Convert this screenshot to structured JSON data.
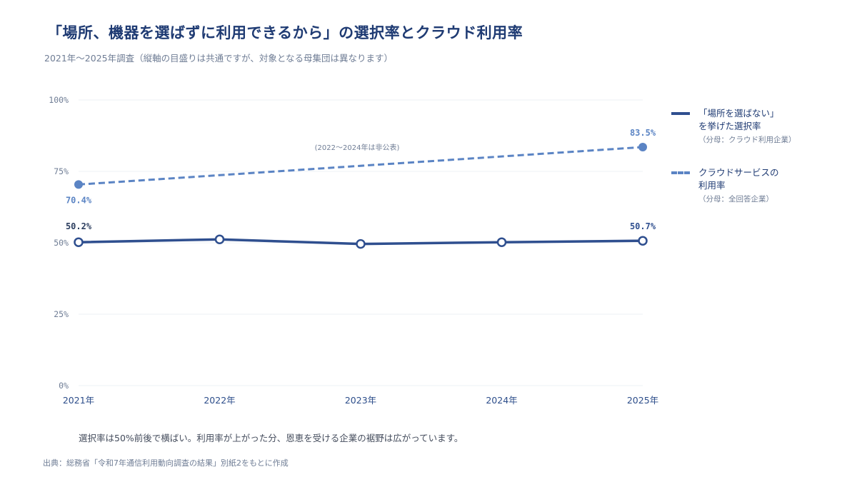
{
  "title": "「場所、機器を選ばずに利用できるから」の選択率とクラウド利用率",
  "subtitle": "2021年～2025年調査（縦軸の目盛りは共通ですが、対象となる母集団は異なります）",
  "chart_data": {
    "type": "line",
    "categories": [
      "2021年",
      "2022年",
      "2023年",
      "2024年",
      "2025年"
    ],
    "ylim": [
      0,
      100
    ],
    "yticks": [
      "0%",
      "25%",
      "50%",
      "75%",
      "100%"
    ],
    "grid": true,
    "legend_position": "right",
    "series": [
      {
        "name": "「場所を選ばない」を挙げた選択率",
        "style": "solid",
        "color": "#2f4f8f",
        "values": [
          50.2,
          51.2,
          49.6,
          50.2,
          50.7
        ],
        "labels": {
          "0": "50.2%",
          "4": "50.7%"
        }
      },
      {
        "name": "クラウドサービスの利用率",
        "style": "dashed",
        "color": "#5b84c4",
        "values": [
          70.4,
          null,
          null,
          null,
          83.5
        ],
        "labels": {
          "0": "70.4%",
          "4": "83.5%"
        }
      }
    ],
    "annotation": "(2022～2024年は非公表)"
  },
  "legend": [
    {
      "line1": "「場所を選ばない」",
      "line2": "を挙げた選択率",
      "sub": "（分母：クラウド利用企業）"
    },
    {
      "line1": "クラウドサービスの",
      "line2": "利用率",
      "sub": "（分母：全回答企業）"
    }
  ],
  "caption": "選択率は50%前後で横ばい。利用率が上がった分、恩恵を受ける企業の裾野は広がっています。",
  "source": "出典：総務省「令和7年通信利用動向調査の結果」別紙2をもとに作成"
}
